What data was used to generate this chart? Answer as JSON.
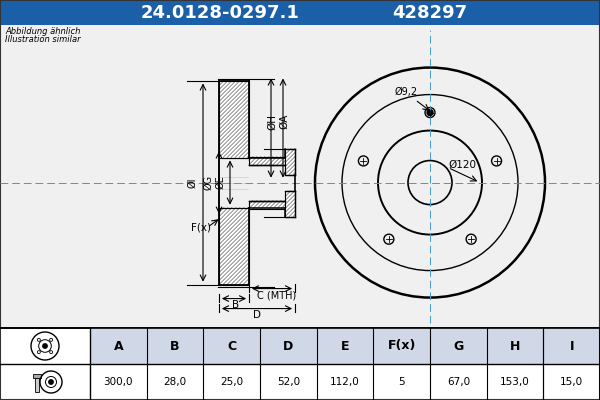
{
  "title_part": "24.0128-0297.1",
  "title_num": "428297",
  "title_bg": "#1a5fa8",
  "title_fg": "#ffffff",
  "subtitle1": "Abbildung ähnlich",
  "subtitle2": "Illustration similar",
  "table_headers": [
    "A",
    "B",
    "C",
    "D",
    "E",
    "F(x)",
    "G",
    "H",
    "I"
  ],
  "table_values": [
    "300,0",
    "28,0",
    "25,0",
    "52,0",
    "112,0",
    "5",
    "67,0",
    "153,0",
    "15,0"
  ],
  "dim_labels": [
    "ØI",
    "ØG",
    "ØE",
    "ØH",
    "ØA",
    "F(x)",
    "B",
    "C (MTH)",
    "D"
  ],
  "label_9_2": "Ø9,2",
  "label_120": "Ø120",
  "bg_color": "#f0f0f0",
  "line_color": "#000000",
  "blue_color": "#1a5fa8",
  "table_border": "#000000",
  "cell_bg": "#ffffff",
  "header_cell_bg": "#d0d8e8"
}
